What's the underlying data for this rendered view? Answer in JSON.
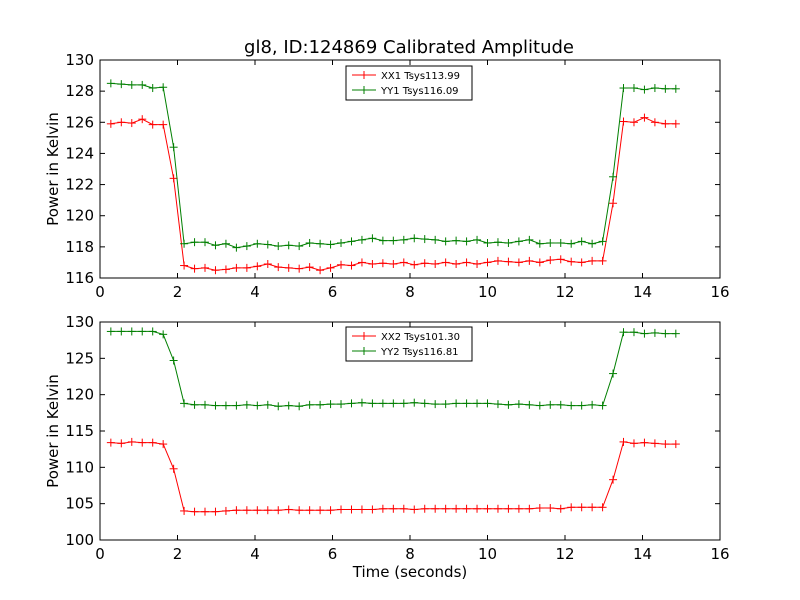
{
  "figure_title": "gl8, ID:124869 Calibrated Amplitude",
  "colors": {
    "xx": "#ff0000",
    "yy": "#007f00"
  },
  "chart_data": [
    {
      "type": "line",
      "xlim": [
        0,
        16
      ],
      "ylim": [
        116,
        130
      ],
      "xticks": [
        "0",
        "2",
        "4",
        "6",
        "8",
        "10",
        "12",
        "14",
        "16"
      ],
      "yticks": [
        "116",
        "118",
        "120",
        "122",
        "124",
        "126",
        "128",
        "130"
      ],
      "xlabel": "",
      "ylabel": "Power in Kelvin",
      "legend_position": "top-center",
      "x": [
        0.28,
        0.55,
        0.82,
        1.09,
        1.36,
        1.63,
        1.9,
        2.17,
        2.44,
        2.71,
        2.98,
        3.25,
        3.52,
        3.79,
        4.06,
        4.33,
        4.6,
        4.87,
        5.14,
        5.41,
        5.68,
        5.95,
        6.22,
        6.49,
        6.76,
        7.03,
        7.3,
        7.57,
        7.84,
        8.11,
        8.38,
        8.65,
        8.92,
        9.19,
        9.46,
        9.73,
        10.0,
        10.27,
        10.54,
        10.81,
        11.08,
        11.35,
        11.62,
        11.89,
        12.16,
        12.43,
        12.7,
        12.97,
        13.24,
        13.51,
        13.78,
        14.05,
        14.32,
        14.59,
        14.86
      ],
      "series": [
        {
          "name": "XX1 Tsys113.99",
          "color": "#ff0000",
          "values": [
            125.9,
            126.0,
            125.95,
            126.2,
            125.85,
            125.85,
            122.4,
            116.8,
            116.6,
            116.65,
            116.5,
            116.55,
            116.65,
            116.65,
            116.75,
            116.9,
            116.7,
            116.65,
            116.6,
            116.7,
            116.5,
            116.65,
            116.85,
            116.8,
            117.0,
            116.9,
            116.95,
            116.9,
            117.0,
            116.85,
            116.95,
            116.9,
            117.0,
            116.9,
            117.0,
            116.9,
            117.0,
            117.1,
            117.05,
            117.0,
            117.1,
            117.0,
            117.15,
            117.2,
            117.05,
            117.0,
            117.1,
            117.1,
            120.8,
            126.05,
            126.0,
            126.3,
            126.0,
            125.9,
            125.9
          ]
        },
        {
          "name": "YY1 Tsys116.09",
          "color": "#007f00",
          "values": [
            128.5,
            128.45,
            128.4,
            128.4,
            128.2,
            128.25,
            124.4,
            118.2,
            118.3,
            118.3,
            118.1,
            118.2,
            117.95,
            118.05,
            118.2,
            118.15,
            118.05,
            118.1,
            118.05,
            118.25,
            118.2,
            118.15,
            118.25,
            118.35,
            118.45,
            118.55,
            118.4,
            118.4,
            118.45,
            118.55,
            118.5,
            118.45,
            118.35,
            118.4,
            118.35,
            118.45,
            118.25,
            118.3,
            118.25,
            118.35,
            118.45,
            118.2,
            118.25,
            118.25,
            118.2,
            118.35,
            118.2,
            118.35,
            122.5,
            128.2,
            128.2,
            128.1,
            128.2,
            128.15,
            128.15
          ]
        }
      ]
    },
    {
      "type": "line",
      "xlim": [
        0,
        16
      ],
      "ylim": [
        100,
        130
      ],
      "xticks": [
        "0",
        "2",
        "4",
        "6",
        "8",
        "10",
        "12",
        "14",
        "16"
      ],
      "yticks": [
        "100",
        "105",
        "110",
        "115",
        "120",
        "125",
        "130"
      ],
      "xlabel": "Time (seconds)",
      "ylabel": "Power in Kelvin",
      "legend_position": "top-center",
      "x": [
        0.28,
        0.55,
        0.82,
        1.09,
        1.36,
        1.63,
        1.9,
        2.17,
        2.44,
        2.71,
        2.98,
        3.25,
        3.52,
        3.79,
        4.06,
        4.33,
        4.6,
        4.87,
        5.14,
        5.41,
        5.68,
        5.95,
        6.22,
        6.49,
        6.76,
        7.03,
        7.3,
        7.57,
        7.84,
        8.11,
        8.38,
        8.65,
        8.92,
        9.19,
        9.46,
        9.73,
        10.0,
        10.27,
        10.54,
        10.81,
        11.08,
        11.35,
        11.62,
        11.89,
        12.16,
        12.43,
        12.7,
        12.97,
        13.24,
        13.51,
        13.78,
        14.05,
        14.32,
        14.59,
        14.86
      ],
      "series": [
        {
          "name": "XX2 Tsys101.30",
          "color": "#ff0000",
          "values": [
            113.4,
            113.3,
            113.5,
            113.4,
            113.4,
            113.2,
            109.8,
            104.0,
            103.9,
            103.9,
            103.9,
            104.0,
            104.1,
            104.1,
            104.1,
            104.1,
            104.1,
            104.2,
            104.1,
            104.1,
            104.1,
            104.1,
            104.2,
            104.2,
            104.2,
            104.2,
            104.3,
            104.3,
            104.3,
            104.2,
            104.3,
            104.3,
            104.3,
            104.3,
            104.3,
            104.3,
            104.3,
            104.3,
            104.3,
            104.3,
            104.3,
            104.4,
            104.4,
            104.3,
            104.5,
            104.5,
            104.5,
            104.5,
            108.3,
            113.5,
            113.3,
            113.4,
            113.3,
            113.2,
            113.2
          ]
        },
        {
          "name": "YY2 Tsys116.81",
          "color": "#007f00",
          "values": [
            128.7,
            128.7,
            128.7,
            128.7,
            128.7,
            128.3,
            124.7,
            118.8,
            118.6,
            118.6,
            118.5,
            118.5,
            118.5,
            118.6,
            118.5,
            118.6,
            118.4,
            118.5,
            118.4,
            118.6,
            118.6,
            118.7,
            118.7,
            118.8,
            118.9,
            118.8,
            118.8,
            118.8,
            118.8,
            118.9,
            118.8,
            118.7,
            118.7,
            118.8,
            118.8,
            118.8,
            118.8,
            118.7,
            118.6,
            118.7,
            118.6,
            118.5,
            118.6,
            118.6,
            118.5,
            118.5,
            118.6,
            118.5,
            122.9,
            128.6,
            128.6,
            128.4,
            128.5,
            128.4,
            128.4
          ]
        }
      ]
    }
  ]
}
